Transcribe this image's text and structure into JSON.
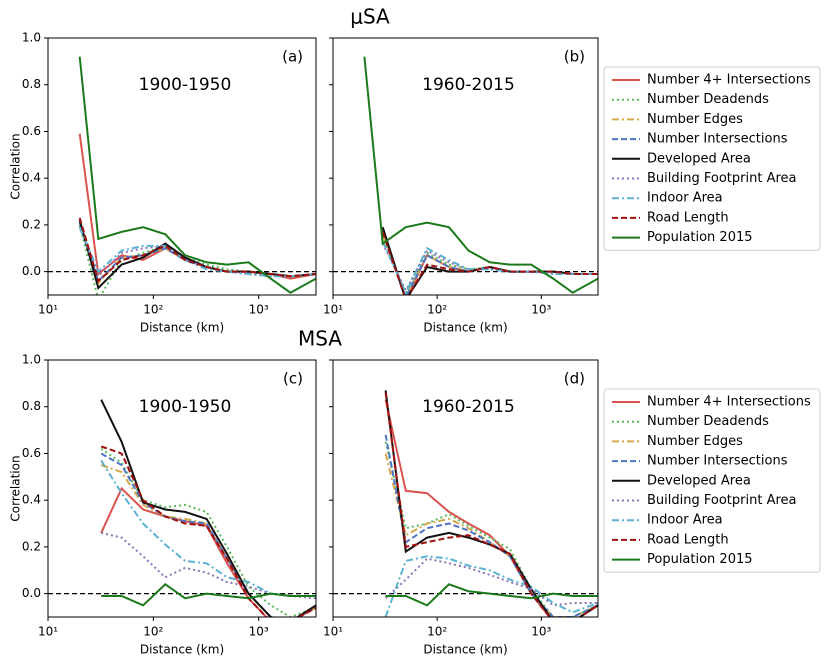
{
  "chart_data": [
    {
      "type": "line",
      "suptitle": "μSA",
      "panel": "(a)",
      "period": "1900-1950",
      "xlabel": "Distance (km)",
      "ylabel": "Correlation",
      "xscale": "log",
      "xlim": [
        10,
        3500
      ],
      "ylim": [
        -0.1,
        1.0
      ],
      "xticks": [
        {
          "value": 10,
          "label": "10¹"
        },
        {
          "value": 100,
          "label": "10²"
        },
        {
          "value": 1000,
          "label": "10³"
        }
      ],
      "yticks": [
        {
          "value": 0,
          "label": "0.0"
        },
        0.2,
        0.4,
        0.6,
        0.8,
        {
          "value": 1,
          "label": "1.0"
        }
      ],
      "ytick_labels": true,
      "reference_line": 0,
      "x": [
        20,
        30,
        50,
        80,
        130,
        200,
        320,
        500,
        800,
        1300,
        2000,
        3500
      ],
      "series": [
        {
          "name": "Number 4+ Intersections",
          "color": "#d9534f",
          "style": "solid",
          "values": [
            0.59,
            -0.01,
            0.07,
            0.05,
            0.1,
            0.05,
            0.02,
            0.0,
            0.0,
            -0.01,
            -0.03,
            -0.01
          ]
        },
        {
          "name": "Number Deadends",
          "color": "#5cb85c",
          "style": "dotted",
          "values": [
            0.2,
            -0.12,
            0.05,
            0.08,
            0.11,
            0.06,
            0.03,
            0.01,
            0.0,
            -0.01,
            -0.02,
            -0.01
          ]
        },
        {
          "name": "Number Edges",
          "color": "#d4a84b",
          "style": "dashdot",
          "values": [
            0.21,
            -0.05,
            0.06,
            0.07,
            0.1,
            0.05,
            0.02,
            0.0,
            0.0,
            -0.01,
            -0.02,
            -0.01
          ]
        },
        {
          "name": "Number Intersections",
          "color": "#4f74c4",
          "style": "dashed",
          "values": [
            0.21,
            -0.04,
            0.06,
            0.07,
            0.1,
            0.05,
            0.02,
            0.0,
            0.0,
            -0.01,
            -0.02,
            -0.01
          ]
        },
        {
          "name": "Developed Area",
          "color": "#111111",
          "style": "solid",
          "values": [
            0.22,
            -0.07,
            0.03,
            0.06,
            0.12,
            0.06,
            0.02,
            0.0,
            0.0,
            -0.01,
            -0.02,
            -0.01
          ]
        },
        {
          "name": "Building Footprint Area",
          "color": "#8a74b8",
          "style": "dotted",
          "values": [
            0.19,
            -0.02,
            0.08,
            0.1,
            0.11,
            0.05,
            0.02,
            0.0,
            -0.01,
            -0.02,
            -0.02,
            -0.01
          ]
        },
        {
          "name": "Indoor Area",
          "color": "#5bb1d1",
          "style": "dashdot",
          "values": [
            0.19,
            0.0,
            0.09,
            0.11,
            0.11,
            0.05,
            0.01,
            0.0,
            -0.01,
            -0.02,
            -0.02,
            -0.01
          ]
        },
        {
          "name": "Road Length",
          "color": "#a01010",
          "style": "dashed",
          "values": [
            0.23,
            -0.04,
            0.05,
            0.07,
            0.11,
            0.05,
            0.02,
            0.0,
            0.0,
            -0.01,
            -0.02,
            -0.01
          ]
        },
        {
          "name": "Population 2015",
          "color": "#1a7a1a",
          "style": "solid",
          "values": [
            0.92,
            0.14,
            0.17,
            0.19,
            0.16,
            0.07,
            0.04,
            0.03,
            0.04,
            -0.03,
            -0.09,
            -0.03
          ]
        }
      ]
    },
    {
      "type": "line",
      "panel": "(b)",
      "period": "1960-2015",
      "xlabel": "Distance (km)",
      "xscale": "log",
      "xlim": [
        10,
        3500
      ],
      "ylim": [
        -0.1,
        1.0
      ],
      "xticks": [
        {
          "value": 10,
          "label": "10¹"
        },
        {
          "value": 100,
          "label": "10²"
        },
        {
          "value": 1000,
          "label": "10³"
        }
      ],
      "yticks": [
        0,
        0.2,
        0.4,
        0.6,
        0.8,
        1
      ],
      "ytick_labels": false,
      "reference_line": 0,
      "legend": "right",
      "x": [
        20,
        30,
        50,
        80,
        130,
        200,
        320,
        500,
        800,
        1300,
        2000,
        3500
      ],
      "series": [
        {
          "name": "Number 4+ Intersections",
          "color": "#d9534f",
          "style": "solid",
          "values": [
            null,
            0.18,
            -0.12,
            0.07,
            0.02,
            0.0,
            0.02,
            0.0,
            0.0,
            0.0,
            -0.01,
            -0.01
          ]
        },
        {
          "name": "Number Deadends",
          "color": "#5cb85c",
          "style": "dotted",
          "values": [
            null,
            0.15,
            -0.1,
            0.08,
            0.03,
            0.01,
            0.02,
            0.0,
            0.0,
            0.0,
            -0.01,
            -0.01
          ]
        },
        {
          "name": "Number Edges",
          "color": "#d4a84b",
          "style": "dashdot",
          "values": [
            null,
            0.16,
            -0.11,
            0.07,
            0.02,
            0.0,
            0.02,
            0.0,
            0.0,
            0.0,
            -0.01,
            -0.01
          ]
        },
        {
          "name": "Number Intersections",
          "color": "#4f74c4",
          "style": "dashed",
          "values": [
            null,
            0.17,
            -0.11,
            0.07,
            0.02,
            0.0,
            0.02,
            0.0,
            0.0,
            0.0,
            -0.01,
            -0.01
          ]
        },
        {
          "name": "Developed Area",
          "color": "#111111",
          "style": "solid",
          "values": [
            null,
            0.19,
            -0.12,
            0.02,
            0.0,
            0.0,
            0.02,
            0.0,
            0.0,
            0.0,
            -0.01,
            -0.01
          ]
        },
        {
          "name": "Building Footprint Area",
          "color": "#8a74b8",
          "style": "dotted",
          "values": [
            null,
            0.12,
            -0.08,
            0.09,
            0.04,
            0.01,
            0.01,
            0.0,
            0.0,
            -0.01,
            -0.01,
            -0.01
          ]
        },
        {
          "name": "Indoor Area",
          "color": "#5bb1d1",
          "style": "dashdot",
          "values": [
            null,
            0.13,
            -0.09,
            0.1,
            0.05,
            0.01,
            0.01,
            0.0,
            0.0,
            -0.01,
            -0.01,
            -0.01
          ]
        },
        {
          "name": "Road Length",
          "color": "#a01010",
          "style": "dashed",
          "values": [
            null,
            0.17,
            -0.12,
            0.03,
            0.01,
            0.0,
            0.02,
            0.0,
            0.0,
            0.0,
            -0.01,
            -0.01
          ]
        },
        {
          "name": "Population 2015",
          "color": "#1a7a1a",
          "style": "solid",
          "values": [
            0.92,
            0.12,
            0.19,
            0.21,
            0.19,
            0.09,
            0.04,
            0.03,
            0.03,
            -0.03,
            -0.09,
            -0.03
          ]
        }
      ]
    },
    {
      "type": "line",
      "suptitle": "MSA",
      "panel": "(c)",
      "period": "1900-1950",
      "xlabel": "Distance (km)",
      "ylabel": "Correlation",
      "xscale": "log",
      "xlim": [
        10,
        3500
      ],
      "ylim": [
        -0.1,
        1.0
      ],
      "xticks": [
        {
          "value": 10,
          "label": "10¹"
        },
        {
          "value": 100,
          "label": "10²"
        },
        {
          "value": 1000,
          "label": "10³"
        }
      ],
      "yticks": [
        {
          "value": 0,
          "label": "0.0"
        },
        0.2,
        0.4,
        0.6,
        0.8,
        {
          "value": 1,
          "label": "1.0"
        }
      ],
      "ytick_labels": true,
      "reference_line": 0,
      "x": [
        20,
        32,
        50,
        80,
        130,
        200,
        320,
        500,
        800,
        1300,
        2000,
        3500
      ],
      "series": [
        {
          "name": "Number 4+ Intersections",
          "color": "#d9534f",
          "style": "solid",
          "values": [
            null,
            0.26,
            0.45,
            0.36,
            0.33,
            0.31,
            0.29,
            0.13,
            -0.02,
            -0.12,
            -0.12,
            -0.06
          ]
        },
        {
          "name": "Number Deadends",
          "color": "#5cb85c",
          "style": "dotted",
          "values": [
            null,
            0.62,
            0.56,
            0.4,
            0.37,
            0.38,
            0.35,
            0.2,
            0.03,
            -0.05,
            -0.1,
            -0.06
          ]
        },
        {
          "name": "Number Edges",
          "color": "#d4a84b",
          "style": "dashdot",
          "values": [
            null,
            0.55,
            0.52,
            0.38,
            0.33,
            0.32,
            0.3,
            0.15,
            0.0,
            -0.1,
            -0.12,
            -0.06
          ]
        },
        {
          "name": "Number Intersections",
          "color": "#4f74c4",
          "style": "dashed",
          "values": [
            null,
            0.6,
            0.55,
            0.39,
            0.33,
            0.31,
            0.3,
            0.15,
            0.0,
            -0.1,
            -0.12,
            -0.06
          ]
        },
        {
          "name": "Developed Area",
          "color": "#111111",
          "style": "solid",
          "values": [
            null,
            0.83,
            0.65,
            0.39,
            0.36,
            0.35,
            0.32,
            0.17,
            0.0,
            -0.1,
            -0.12,
            -0.05
          ]
        },
        {
          "name": "Building Footprint Area",
          "color": "#8a74b8",
          "style": "dotted",
          "values": [
            null,
            0.26,
            0.24,
            0.16,
            0.07,
            0.11,
            0.09,
            0.05,
            0.03,
            0.0,
            -0.01,
            -0.02
          ]
        },
        {
          "name": "Indoor Area",
          "color": "#5bb1d1",
          "style": "dashdot",
          "values": [
            null,
            0.57,
            0.43,
            0.3,
            0.21,
            0.14,
            0.13,
            0.07,
            0.05,
            0.0,
            -0.01,
            -0.01
          ]
        },
        {
          "name": "Road Length",
          "color": "#a01010",
          "style": "dashed",
          "values": [
            null,
            0.63,
            0.6,
            0.4,
            0.33,
            0.3,
            0.29,
            0.15,
            -0.02,
            -0.12,
            -0.12,
            -0.06
          ]
        },
        {
          "name": "Population 2015",
          "color": "#1a7a1a",
          "style": "solid",
          "values": [
            null,
            -0.01,
            -0.01,
            -0.05,
            0.04,
            -0.02,
            0.0,
            -0.01,
            -0.02,
            0.0,
            -0.01,
            -0.01
          ]
        }
      ]
    },
    {
      "type": "line",
      "panel": "(d)",
      "period": "1960-2015",
      "xlabel": "Distance (km)",
      "xscale": "log",
      "xlim": [
        10,
        3500
      ],
      "ylim": [
        -0.1,
        1.0
      ],
      "xticks": [
        {
          "value": 10,
          "label": "10¹"
        },
        {
          "value": 100,
          "label": "10²"
        },
        {
          "value": 1000,
          "label": "10³"
        }
      ],
      "yticks": [
        0,
        0.2,
        0.4,
        0.6,
        0.8,
        1
      ],
      "ytick_labels": false,
      "reference_line": 0,
      "legend": "right",
      "x": [
        20,
        32,
        50,
        80,
        130,
        200,
        320,
        500,
        800,
        1300,
        2000,
        3500
      ],
      "series": [
        {
          "name": "Number 4+ Intersections",
          "color": "#d9534f",
          "style": "solid",
          "values": [
            null,
            0.83,
            0.44,
            0.43,
            0.35,
            0.3,
            0.25,
            0.16,
            0.0,
            -0.12,
            -0.12,
            -0.05
          ]
        },
        {
          "name": "Number Deadends",
          "color": "#5cb85c",
          "style": "dotted",
          "values": [
            null,
            0.65,
            0.28,
            0.3,
            0.34,
            0.29,
            0.24,
            0.19,
            0.02,
            -0.1,
            -0.1,
            -0.05
          ]
        },
        {
          "name": "Number Edges",
          "color": "#d4a84b",
          "style": "dashdot",
          "values": [
            null,
            0.6,
            0.25,
            0.3,
            0.32,
            0.28,
            0.22,
            0.16,
            0.0,
            -0.1,
            -0.1,
            -0.05
          ]
        },
        {
          "name": "Number Intersections",
          "color": "#4f74c4",
          "style": "dashed",
          "values": [
            null,
            0.68,
            0.22,
            0.28,
            0.3,
            0.27,
            0.22,
            0.16,
            0.0,
            -0.1,
            -0.1,
            -0.05
          ]
        },
        {
          "name": "Developed Area",
          "color": "#111111",
          "style": "solid",
          "values": [
            null,
            0.87,
            0.18,
            0.24,
            0.26,
            0.24,
            0.21,
            0.17,
            0.02,
            -0.12,
            -0.12,
            -0.05
          ]
        },
        {
          "name": "Building Footprint Area",
          "color": "#8a74b8",
          "style": "dotted",
          "values": [
            null,
            -0.02,
            0.06,
            0.15,
            0.13,
            0.11,
            0.08,
            0.05,
            0.02,
            -0.05,
            -0.04,
            -0.04
          ]
        },
        {
          "name": "Indoor Area",
          "color": "#5bb1d1",
          "style": "dashdot",
          "values": [
            null,
            -0.1,
            0.14,
            0.16,
            0.15,
            0.12,
            0.1,
            0.06,
            0.03,
            -0.04,
            -0.08,
            -0.04
          ]
        },
        {
          "name": "Road Length",
          "color": "#a01010",
          "style": "dashed",
          "values": [
            null,
            0.86,
            0.2,
            0.22,
            0.24,
            0.25,
            0.21,
            0.17,
            0.0,
            -0.12,
            -0.12,
            -0.05
          ]
        },
        {
          "name": "Population 2015",
          "color": "#1a7a1a",
          "style": "solid",
          "values": [
            null,
            -0.01,
            -0.01,
            -0.05,
            0.04,
            0.01,
            0.0,
            -0.01,
            -0.02,
            0.0,
            -0.01,
            -0.01
          ]
        }
      ]
    }
  ]
}
